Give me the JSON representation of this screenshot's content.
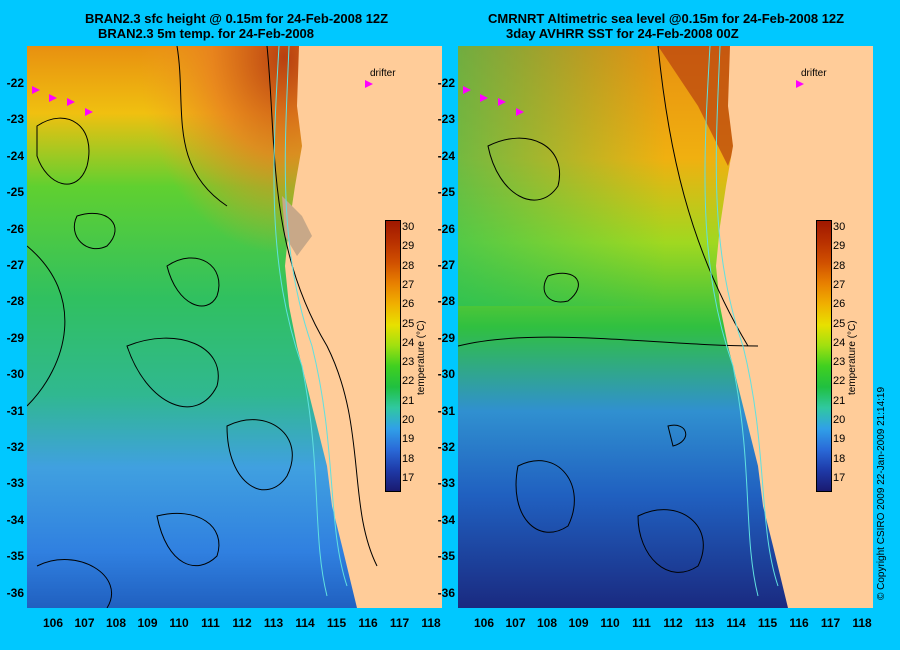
{
  "panels": [
    {
      "title_line1": "BRAN2.3 sfc height @ 0.15m for 24-Feb-2008 12Z",
      "title_line2": "BRAN2.3 5m temp. for 24-Feb-2008",
      "drifter_label": "drifter"
    },
    {
      "title_line1": "CMRNRT Altimetric sea level  @0.15m  for 24-Feb-2008 12Z",
      "title_line2": "3day AVHRR SST for 24-Feb-2008 00Z",
      "drifter_label": "drifter"
    }
  ],
  "lat_ticks": [
    "-22",
    "-23",
    "-24",
    "-25",
    "-26",
    "-27",
    "-28",
    "-29",
    "-30",
    "-31",
    "-32",
    "-33",
    "-34",
    "-35",
    "-36"
  ],
  "lon_ticks": [
    "106",
    "107",
    "108",
    "109",
    "110",
    "111",
    "112",
    "113",
    "114",
    "115",
    "116",
    "117",
    "118"
  ],
  "colorbar": {
    "ticks": [
      "30",
      "29",
      "28",
      "27",
      "26",
      "25",
      "24",
      "23",
      "22",
      "21",
      "20",
      "19",
      "18",
      "17"
    ],
    "label": "temperature (°C)",
    "colors": [
      "#1a1a70",
      "#1e3aa8",
      "#2a6ad8",
      "#30a0e8",
      "#30c8a0",
      "#20c040",
      "#40d020",
      "#a0e010",
      "#e8e000",
      "#f0b000",
      "#e88000",
      "#d05000",
      "#b83000",
      "#a01800"
    ]
  },
  "copyright": "© Copyright CSIRO 2009   22-Jan-2009 21:14:19",
  "colors": {
    "background": "#00c8ff",
    "land": "#ffcc99",
    "contour": "#000000",
    "isobath": "#60e0e0",
    "drifter": "#ff00ff"
  }
}
